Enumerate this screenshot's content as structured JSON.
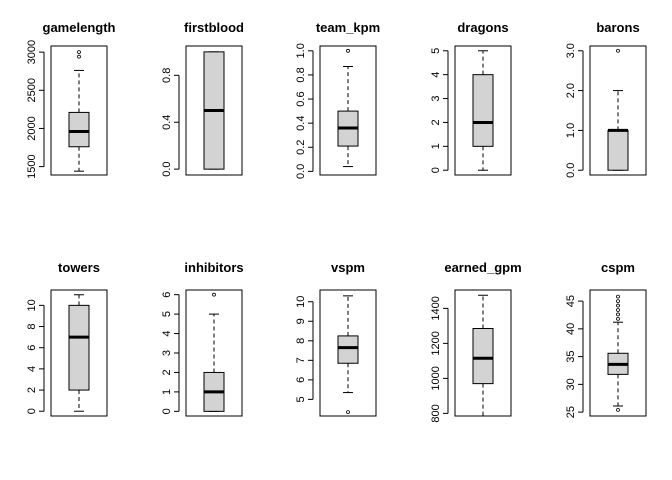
{
  "chart_data": [
    {
      "type": "boxplot",
      "title": "gamelength",
      "ylim": [
        1390,
        3080
      ],
      "ticks": [
        1500,
        2000,
        2500,
        3000
      ],
      "tick_labels": [
        "1500",
        "2000",
        "2500",
        "3000"
      ],
      "whisker_low": 1440,
      "q1": 1760,
      "median": 1960,
      "q3": 2210,
      "whisker_high": 2760,
      "outliers": [
        2940,
        3000
      ]
    },
    {
      "type": "boxplot",
      "title": "firstblood",
      "ylim": [
        -0.05,
        1.05
      ],
      "ticks": [
        0,
        0.4,
        0.8
      ],
      "tick_labels": [
        "0.0",
        "0.4",
        "0.8"
      ],
      "whisker_low": 0,
      "q1": 0,
      "median": 0.5,
      "q3": 1,
      "whisker_high": 1,
      "outliers": []
    },
    {
      "type": "boxplot",
      "title": "team_kpm",
      "ylim": [
        -0.03,
        1.04
      ],
      "ticks": [
        0,
        0.2,
        0.4,
        0.6,
        0.8,
        1.0
      ],
      "tick_labels": [
        "0.0",
        "0.2",
        "0.4",
        "0.6",
        "0.8",
        "1.0"
      ],
      "whisker_low": 0.04,
      "q1": 0.21,
      "median": 0.36,
      "q3": 0.5,
      "whisker_high": 0.87,
      "outliers": [
        1.0
      ]
    },
    {
      "type": "boxplot",
      "title": "dragons",
      "ylim": [
        -0.2,
        5.2
      ],
      "ticks": [
        0,
        1,
        2,
        3,
        4,
        5
      ],
      "tick_labels": [
        "0",
        "1",
        "2",
        "3",
        "4",
        "5"
      ],
      "whisker_low": 0,
      "q1": 1,
      "median": 2,
      "q3": 4,
      "whisker_high": 5,
      "outliers": []
    },
    {
      "type": "boxplot",
      "title": "barons",
      "ylim": [
        -0.12,
        3.12
      ],
      "ticks": [
        0,
        1,
        2,
        3
      ],
      "tick_labels": [
        "0.0",
        "1.0",
        "2.0",
        "3.0"
      ],
      "whisker_low": 0,
      "q1": 0,
      "median": 1,
      "q3": 1,
      "whisker_high": 2,
      "outliers": [
        3
      ]
    },
    {
      "type": "boxplot",
      "title": "towers",
      "ylim": [
        -0.45,
        11.45
      ],
      "ticks": [
        0,
        2,
        4,
        6,
        8,
        10
      ],
      "tick_labels": [
        "0",
        "2",
        "4",
        "6",
        "8",
        "10"
      ],
      "whisker_low": 0,
      "q1": 2,
      "median": 7,
      "q3": 10,
      "whisker_high": 11,
      "outliers": []
    },
    {
      "type": "boxplot",
      "title": "inhibitors",
      "ylim": [
        -0.24,
        6.24
      ],
      "ticks": [
        0,
        1,
        2,
        3,
        4,
        5,
        6
      ],
      "tick_labels": [
        "0",
        "1",
        "2",
        "3",
        "4",
        "5",
        "6"
      ],
      "whisker_low": 0,
      "q1": 0,
      "median": 1,
      "q3": 2,
      "whisker_high": 5,
      "outliers": [
        6
      ]
    },
    {
      "type": "boxplot",
      "title": "vspm",
      "ylim": [
        4.15,
        10.6
      ],
      "ticks": [
        5,
        6,
        7,
        8,
        9,
        10
      ],
      "tick_labels": [
        "5",
        "6",
        "7",
        "8",
        "9",
        "10"
      ],
      "whisker_low": 5.35,
      "q1": 6.85,
      "median": 7.65,
      "q3": 8.25,
      "whisker_high": 10.3,
      "outliers": [
        4.35
      ]
    },
    {
      "type": "boxplot",
      "title": "earned_gpm",
      "ylim": [
        785,
        1505
      ],
      "ticks": [
        800,
        1000,
        1200,
        1400
      ],
      "tick_labels": [
        "800",
        "1000",
        "1200",
        "1400"
      ],
      "whisker_low": 785,
      "q1": 970,
      "median": 1115,
      "q3": 1285,
      "whisker_high": 1475,
      "outliers": []
    },
    {
      "type": "boxplot",
      "title": "cspm",
      "ylim": [
        24.3,
        47.0
      ],
      "ticks": [
        25,
        30,
        35,
        40,
        45
      ],
      "tick_labels": [
        "25",
        "30",
        "35",
        "40",
        "45"
      ],
      "whisker_low": 26.1,
      "q1": 31.8,
      "median": 33.6,
      "q3": 35.6,
      "whisker_high": 41.2,
      "outliers": [
        25.4,
        41.8,
        42.6,
        43.4,
        44.2,
        45.0,
        45.8
      ]
    }
  ],
  "style": {
    "box_fill": "#d3d3d3",
    "stroke": "#000000",
    "background": "#ffffff"
  }
}
